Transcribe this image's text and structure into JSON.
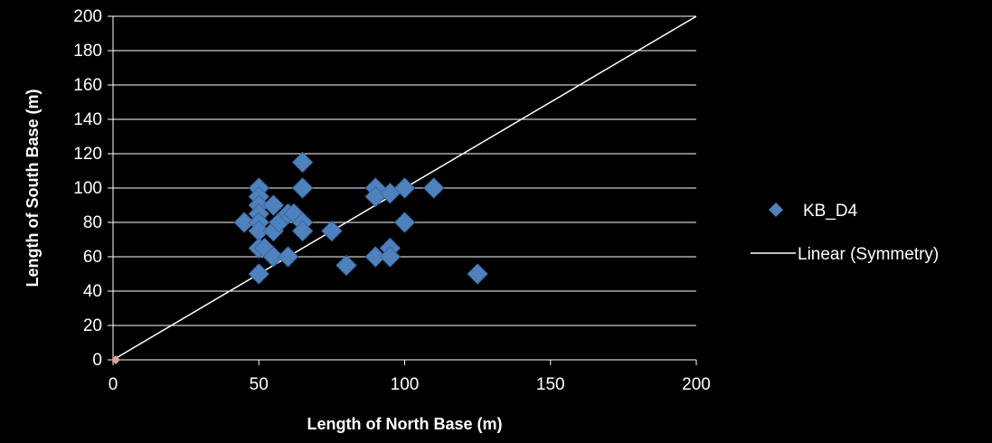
{
  "chart_data": {
    "type": "scatter",
    "xlabel": "Length of North Base (m)",
    "ylabel": "Length of South Base (m)",
    "xlim": [
      0,
      200
    ],
    "ylim": [
      0,
      200
    ],
    "xticks": [
      0,
      50,
      100,
      150,
      200
    ],
    "yticks": [
      0,
      20,
      40,
      60,
      80,
      100,
      120,
      140,
      160,
      180,
      200
    ],
    "grid": "horizontal",
    "legend_position": "right",
    "series": [
      {
        "name": "KB_D4",
        "kind": "scatter",
        "marker": "diamond",
        "color": "#4F81BD",
        "points": [
          [
            45,
            80
          ],
          [
            50,
            100
          ],
          [
            50,
            95
          ],
          [
            50,
            90
          ],
          [
            50,
            85
          ],
          [
            50,
            80
          ],
          [
            50,
            75
          ],
          [
            50,
            65
          ],
          [
            50,
            50
          ],
          [
            52,
            65
          ],
          [
            55,
            90
          ],
          [
            55,
            75
          ],
          [
            55,
            60
          ],
          [
            57,
            80
          ],
          [
            60,
            85
          ],
          [
            60,
            60
          ],
          [
            62,
            85
          ],
          [
            65,
            115
          ],
          [
            65,
            100
          ],
          [
            65,
            80
          ],
          [
            65,
            75
          ],
          [
            75,
            75
          ],
          [
            80,
            55
          ],
          [
            90,
            100
          ],
          [
            90,
            95
          ],
          [
            90,
            60
          ],
          [
            95,
            97
          ],
          [
            95,
            65
          ],
          [
            95,
            60
          ],
          [
            100,
            100
          ],
          [
            100,
            80
          ],
          [
            110,
            100
          ],
          [
            125,
            50
          ]
        ]
      },
      {
        "name": "Linear (Symmetry)",
        "kind": "line",
        "color": "#ffffff",
        "points": [
          [
            0,
            0
          ],
          [
            200,
            200
          ]
        ]
      }
    ],
    "extra_marker": {
      "color": "#E6A0A0",
      "point": [
        0,
        0
      ]
    }
  }
}
